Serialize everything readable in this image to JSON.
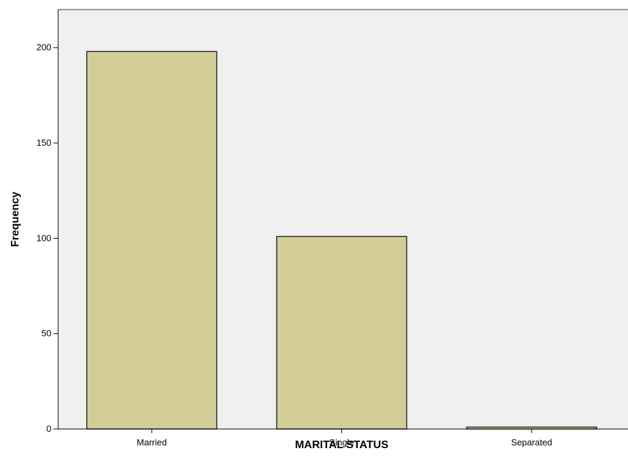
{
  "chart_data": {
    "type": "bar",
    "title": "",
    "xlabel": "MARITAL STATUS",
    "ylabel": "Frequency",
    "categories": [
      "Married",
      "Single",
      "Separated"
    ],
    "values": [
      198,
      101,
      1
    ],
    "ylim": [
      0,
      220
    ],
    "yticks": [
      0,
      50,
      100,
      150,
      200
    ],
    "grid": false,
    "legend": "none",
    "colors": {
      "bar_fill": "#d3ce97",
      "bar_stroke": "#2b2b2b",
      "plot_background": "#f0f0f0",
      "axis": "#000000"
    }
  }
}
